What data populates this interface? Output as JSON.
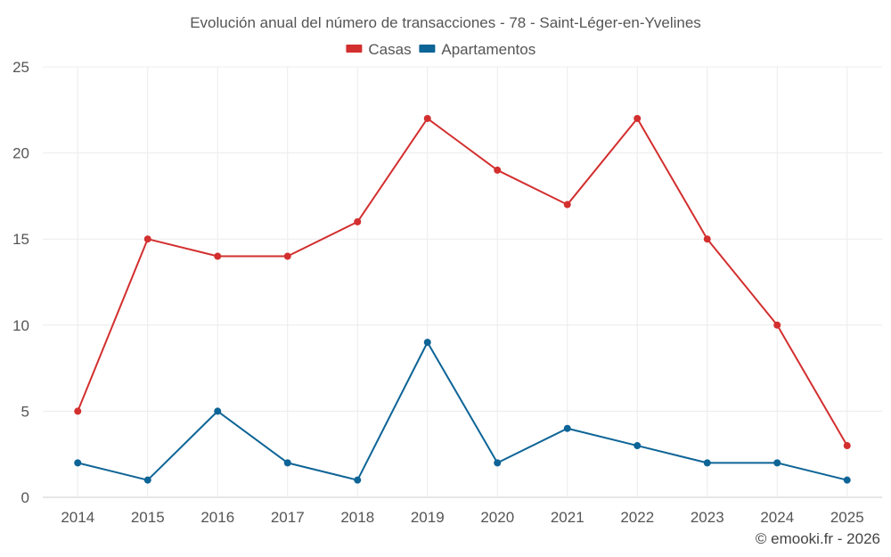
{
  "chart_data": {
    "type": "line",
    "title": "Evolución anual del número de transacciones - 78 - Saint-Léger-en-Yvelines",
    "categories": [
      "2014",
      "2015",
      "2016",
      "2017",
      "2018",
      "2019",
      "2020",
      "2021",
      "2022",
      "2023",
      "2024",
      "2025"
    ],
    "series": [
      {
        "name": "Casas",
        "color": "#d32f2f",
        "values": [
          5,
          15,
          14,
          14,
          16,
          22,
          19,
          17,
          22,
          15,
          10,
          3
        ]
      },
      {
        "name": "Apartamentos",
        "color": "#0d6496",
        "values": [
          2,
          1,
          5,
          2,
          1,
          9,
          2,
          4,
          3,
          2,
          2,
          1
        ]
      }
    ],
    "ylim": [
      0,
      25
    ],
    "yticks": [
      0,
      5,
      10,
      15,
      20,
      25
    ],
    "ytick_labels": [
      "0",
      "5",
      "10",
      "15",
      "20",
      "25"
    ],
    "grid": true,
    "legend": "top-center",
    "xlabel": "",
    "ylabel": ""
  },
  "credit": "© emooki.fr - 2026"
}
